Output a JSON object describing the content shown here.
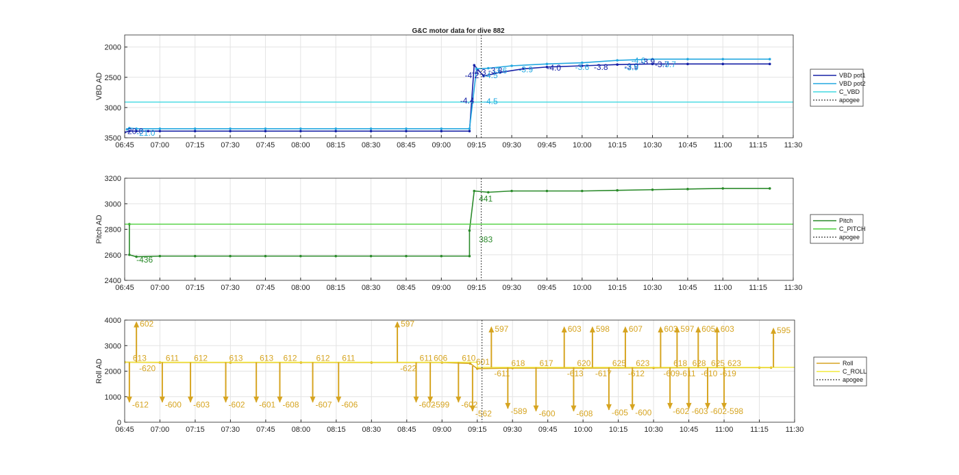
{
  "figure_title": "G&C motor data for dive 882",
  "colors": {
    "vbd1": "#1520a6",
    "vbd2": "#22a7e0",
    "c_vbd": "#3fd8e0",
    "apogee": "#555555",
    "pitch": "#2a8a2a",
    "c_pitch": "#4ccf3a",
    "roll": "#d6a420",
    "c_roll": "#f2ea3a",
    "grid": "#e3e3e3",
    "axis": "#262626"
  },
  "chart_data": [
    {
      "type": "line",
      "ylabel": "VBD AD",
      "ylim": [
        3500,
        1800
      ],
      "yticks": [
        2000,
        2500,
        3000,
        3500
      ],
      "ytick_labels": [
        "2000",
        "2500",
        "3000",
        "3500"
      ],
      "xlim": [
        "06:45",
        "11:30"
      ],
      "xtick_labels": [
        "06:45",
        "07:00",
        "07:15",
        "07:30",
        "07:45",
        "08:00",
        "08:15",
        "08:30",
        "08:45",
        "09:00",
        "09:15",
        "09:30",
        "09:45",
        "10:00",
        "10:15",
        "10:30",
        "10:45",
        "11:00",
        "11:15",
        "11:30"
      ],
      "apogee_x": "09:17",
      "series": [
        {
          "name": "VBD pot1",
          "color_key": "vbd1",
          "values": [
            [
              "06:45",
              3410
            ],
            [
              "06:47",
              3390
            ],
            [
              "06:50",
              3390
            ],
            [
              "06:55",
              3390
            ],
            [
              "07:00",
              3390
            ],
            [
              "07:15",
              3390
            ],
            [
              "07:30",
              3390
            ],
            [
              "07:45",
              3390
            ],
            [
              "08:00",
              3390
            ],
            [
              "08:15",
              3390
            ],
            [
              "08:30",
              3390
            ],
            [
              "08:45",
              3390
            ],
            [
              "09:00",
              3390
            ],
            [
              "09:12",
              3390
            ],
            [
              "09:14",
              2300
            ],
            [
              "09:18",
              2480
            ],
            [
              "09:25",
              2420
            ],
            [
              "09:35",
              2360
            ],
            [
              "09:45",
              2330
            ],
            [
              "10:00",
              2310
            ],
            [
              "10:15",
              2290
            ],
            [
              "10:30",
              2280
            ],
            [
              "10:45",
              2280
            ],
            [
              "11:00",
              2280
            ],
            [
              "11:20",
              2280
            ]
          ]
        },
        {
          "name": "VBD pot2",
          "color_key": "vbd2",
          "values": [
            [
              "06:46",
              3360
            ],
            [
              "06:47",
              3340
            ],
            [
              "06:50",
              3350
            ],
            [
              "07:00",
              3350
            ],
            [
              "07:15",
              3350
            ],
            [
              "07:30",
              3350
            ],
            [
              "07:45",
              3350
            ],
            [
              "08:00",
              3350
            ],
            [
              "08:15",
              3350
            ],
            [
              "08:30",
              3350
            ],
            [
              "08:45",
              3350
            ],
            [
              "09:00",
              3350
            ],
            [
              "09:12",
              3350
            ],
            [
              "09:15",
              2360
            ],
            [
              "09:20",
              2350
            ],
            [
              "09:30",
              2310
            ],
            [
              "09:45",
              2280
            ],
            [
              "10:00",
              2260
            ],
            [
              "10:15",
              2220
            ],
            [
              "10:30",
              2200
            ],
            [
              "10:45",
              2200
            ],
            [
              "11:00",
              2200
            ],
            [
              "11:20",
              2200
            ]
          ]
        },
        {
          "name": "C_VBD",
          "color_key": "c_vbd",
          "values": [
            [
              "06:45",
              2910
            ],
            [
              "11:30",
              2910
            ]
          ]
        }
      ],
      "annotations": [
        {
          "text": "-20.0",
          "x": "06:45",
          "y": 3390,
          "color_key": "vbd1"
        },
        {
          "text": "-21.0",
          "x": "06:50",
          "y": 3420,
          "color_key": "vbd2"
        },
        {
          "text": "-4.4",
          "x": "09:08",
          "y": 2890,
          "color_key": "vbd1"
        },
        {
          "text": "-4.5",
          "x": "09:18",
          "y": 2900,
          "color_key": "vbd2"
        },
        {
          "text": "-4.2",
          "x": "09:10",
          "y": 2470,
          "color_key": "vbd1"
        },
        {
          "text": "-4.3",
          "x": "09:13",
          "y": 2420,
          "color_key": "vbd1"
        },
        {
          "text": "-4.5",
          "x": "09:18",
          "y": 2470,
          "color_key": "vbd2"
        },
        {
          "text": "-3.8",
          "x": "09:20",
          "y": 2390,
          "color_key": "vbd1"
        },
        {
          "text": "-3.6",
          "x": "09:22",
          "y": 2390,
          "color_key": "vbd2"
        },
        {
          "text": "-3.9",
          "x": "09:33",
          "y": 2370,
          "color_key": "vbd2"
        },
        {
          "text": "-4.0",
          "x": "09:45",
          "y": 2345,
          "color_key": "vbd1"
        },
        {
          "text": "-3.6",
          "x": "09:57",
          "y": 2330,
          "color_key": "vbd2"
        },
        {
          "text": "-3.8",
          "x": "10:05",
          "y": 2330,
          "color_key": "vbd1"
        },
        {
          "text": "-3.9",
          "x": "10:18",
          "y": 2320,
          "color_key": "vbd1"
        },
        {
          "text": "-3.9",
          "x": "10:18",
          "y": 2340,
          "color_key": "vbd2"
        },
        {
          "text": "-4.0",
          "x": "10:21",
          "y": 2225,
          "color_key": "vbd2"
        },
        {
          "text": "-3.9",
          "x": "10:25",
          "y": 2240,
          "color_key": "vbd1"
        },
        {
          "text": "-3.7",
          "x": "10:31",
          "y": 2285,
          "color_key": "vbd1"
        },
        {
          "text": "-3.7",
          "x": "10:34",
          "y": 2285,
          "color_key": "vbd2"
        }
      ],
      "legend": {
        "placement": "right",
        "entries": [
          "VBD pot1",
          "VBD pot2",
          "C_VBD",
          "apogee"
        ]
      }
    },
    {
      "type": "line",
      "ylabel": "Pitch AD",
      "ylim": [
        2400,
        3200
      ],
      "yticks": [
        2400,
        2600,
        2800,
        3000,
        3200
      ],
      "ytick_labels": [
        "2400",
        "2600",
        "2800",
        "3000",
        "3200"
      ],
      "xlim": [
        "06:45",
        "11:30"
      ],
      "xtick_labels": [
        "06:45",
        "07:00",
        "07:15",
        "07:30",
        "07:45",
        "08:00",
        "08:15",
        "08:30",
        "08:45",
        "09:00",
        "09:15",
        "09:30",
        "09:45",
        "10:00",
        "10:15",
        "10:30",
        "10:45",
        "11:00",
        "11:15",
        "11:30"
      ],
      "apogee_x": "09:17",
      "series": [
        {
          "name": "Pitch",
          "color_key": "pitch",
          "values": [
            [
              "06:47",
              2840
            ],
            [
              "06:47",
              2600
            ],
            [
              "06:50",
              2585
            ],
            [
              "07:00",
              2590
            ],
            [
              "07:15",
              2590
            ],
            [
              "07:30",
              2590
            ],
            [
              "07:45",
              2590
            ],
            [
              "08:00",
              2590
            ],
            [
              "08:15",
              2590
            ],
            [
              "08:30",
              2590
            ],
            [
              "08:45",
              2590
            ],
            [
              "09:00",
              2590
            ],
            [
              "09:12",
              2590
            ],
            [
              "09:12",
              2790
            ],
            [
              "09:14",
              3100
            ],
            [
              "09:20",
              3090
            ],
            [
              "09:30",
              3100
            ],
            [
              "09:45",
              3100
            ],
            [
              "10:00",
              3100
            ],
            [
              "10:15",
              3105
            ],
            [
              "10:30",
              3110
            ],
            [
              "10:45",
              3115
            ],
            [
              "11:00",
              3120
            ],
            [
              "11:20",
              3120
            ]
          ]
        },
        {
          "name": "C_PITCH",
          "color_key": "c_pitch",
          "values": [
            [
              "06:45",
              2840
            ],
            [
              "11:30",
              2840
            ]
          ]
        }
      ],
      "annotations": [
        {
          "text": "-436",
          "x": "06:50",
          "y": 2560,
          "color_key": "pitch"
        },
        {
          "text": "383",
          "x": "09:16",
          "y": 2720,
          "color_key": "pitch"
        },
        {
          "text": "441",
          "x": "09:16",
          "y": 3040,
          "color_key": "pitch"
        }
      ],
      "legend": {
        "placement": "right",
        "entries": [
          "Pitch",
          "C_PITCH",
          "apogee"
        ]
      }
    },
    {
      "type": "line",
      "ylabel": "Roll AD",
      "ylim": [
        0,
        4000
      ],
      "yticks": [
        0,
        1000,
        2000,
        3000,
        4000
      ],
      "ytick_labels": [
        "0",
        "1000",
        "2000",
        "3000",
        "4000"
      ],
      "xlim": [
        "06:45",
        "11:30"
      ],
      "xtick_labels": [
        "06:45",
        "07:00",
        "07:15",
        "07:30",
        "07:45",
        "08:00",
        "08:15",
        "08:30",
        "08:45",
        "09:00",
        "09:15",
        "09:30",
        "09:45",
        "10:00",
        "10:15",
        "10:30",
        "10:45",
        "11:00",
        "11:15",
        "11:30"
      ],
      "apogee_x": "09:17",
      "series": [
        {
          "name": "Roll",
          "color_key": "roll",
          "values": [
            [
              "06:45",
              2350
            ],
            [
              "07:00",
              2340
            ],
            [
              "07:30",
              2340
            ],
            [
              "08:00",
              2340
            ],
            [
              "08:30",
              2340
            ],
            [
              "09:00",
              2340
            ],
            [
              "09:12",
              2300
            ],
            [
              "09:15",
              2100
            ],
            [
              "09:30",
              2120
            ],
            [
              "10:00",
              2120
            ],
            [
              "10:30",
              2130
            ],
            [
              "11:00",
              2140
            ],
            [
              "11:15",
              2140
            ],
            [
              "11:20",
              2140
            ]
          ]
        },
        {
          "name": "C_ROLL",
          "color_key": "c_roll",
          "values": [
            [
              "06:45",
              2350
            ],
            [
              "09:15",
              2350
            ],
            [
              "09:15",
              2150
            ],
            [
              "11:30",
              2150
            ]
          ]
        }
      ],
      "pulses": [
        {
          "x": "06:47",
          "base": 2350,
          "low": 950,
          "high": null,
          "up_label": "613",
          "down_label": "-612"
        },
        {
          "x": "06:50",
          "base": 2350,
          "low": null,
          "high": 3850,
          "up_label": "602",
          "down_label": "-620"
        },
        {
          "x": "07:01",
          "base": 2350,
          "low": 950,
          "high": null,
          "up_label": "611",
          "down_label": "-600"
        },
        {
          "x": "07:13",
          "base": 2350,
          "low": 950,
          "high": null,
          "up_label": "612",
          "down_label": "-603"
        },
        {
          "x": "07:28",
          "base": 2350,
          "low": 950,
          "high": null,
          "up_label": "613",
          "down_label": "-602"
        },
        {
          "x": "07:41",
          "base": 2350,
          "low": 950,
          "high": null,
          "up_label": "613",
          "down_label": "-601"
        },
        {
          "x": "07:51",
          "base": 2350,
          "low": 950,
          "high": null,
          "up_label": "612",
          "down_label": "-608"
        },
        {
          "x": "08:05",
          "base": 2350,
          "low": 950,
          "high": null,
          "up_label": "612",
          "down_label": "-607"
        },
        {
          "x": "08:16",
          "base": 2350,
          "low": 950,
          "high": null,
          "up_label": "611",
          "down_label": "-606"
        },
        {
          "x": "08:41",
          "base": 2350,
          "low": null,
          "high": 3850,
          "up_label": "597",
          "down_label": "-622"
        },
        {
          "x": "08:49",
          "base": 2350,
          "low": 950,
          "high": null,
          "up_label": "611",
          "down_label": "-602"
        },
        {
          "x": "08:55",
          "base": 2350,
          "low": 950,
          "high": null,
          "up_label": "606",
          "down_label": "-599"
        },
        {
          "x": "09:07",
          "base": 2350,
          "low": 950,
          "high": null,
          "up_label": "610",
          "down_label": "-602"
        },
        {
          "x": "09:13",
          "base": 2200,
          "low": 600,
          "high": null,
          "up_label": "601",
          "down_label": "-562"
        },
        {
          "x": "09:21",
          "base": 2150,
          "low": null,
          "high": 3650,
          "up_label": "597",
          "down_label": "-611"
        },
        {
          "x": "09:28",
          "base": 2150,
          "low": 700,
          "high": null,
          "up_label": "618",
          "down_label": "-589"
        },
        {
          "x": "09:40",
          "base": 2150,
          "low": 600,
          "high": null,
          "up_label": "617",
          "down_label": "-600"
        },
        {
          "x": "09:52",
          "base": 2150,
          "low": null,
          "high": 3650,
          "up_label": "603",
          "down_label": "-613"
        },
        {
          "x": "09:56",
          "base": 2150,
          "low": 600,
          "high": null,
          "up_label": "620",
          "down_label": "-608"
        },
        {
          "x": "10:04",
          "base": 2150,
          "low": null,
          "high": 3650,
          "up_label": "598",
          "down_label": "-617"
        },
        {
          "x": "10:11",
          "base": 2150,
          "low": 650,
          "high": null,
          "up_label": "625",
          "down_label": "-605"
        },
        {
          "x": "10:18",
          "base": 2150,
          "low": null,
          "high": 3650,
          "up_label": "607",
          "down_label": "-612"
        },
        {
          "x": "10:21",
          "base": 2150,
          "low": 650,
          "high": null,
          "up_label": "623",
          "down_label": "-600"
        },
        {
          "x": "10:33",
          "base": 2150,
          "low": null,
          "high": 3650,
          "up_label": "603",
          "down_label": "-609"
        },
        {
          "x": "10:37",
          "base": 2150,
          "low": 700,
          "high": null,
          "up_label": "618",
          "down_label": "-602"
        },
        {
          "x": "10:40",
          "base": 2150,
          "low": null,
          "high": 3650,
          "up_label": "597",
          "down_label": "-611"
        },
        {
          "x": "10:45",
          "base": 2150,
          "low": 700,
          "high": null,
          "up_label": "628",
          "down_label": "-603"
        },
        {
          "x": "10:49",
          "base": 2150,
          "low": null,
          "high": 3650,
          "up_label": "605",
          "down_label": "-610"
        },
        {
          "x": "10:53",
          "base": 2150,
          "low": 700,
          "high": null,
          "up_label": "625",
          "down_label": "-602"
        },
        {
          "x": "10:57",
          "base": 2150,
          "low": null,
          "high": 3650,
          "up_label": "603",
          "down_label": "-619"
        },
        {
          "x": "11:00",
          "base": 2150,
          "low": 700,
          "high": null,
          "up_label": "623",
          "down_label": "-598"
        },
        {
          "x": "11:21",
          "base": 2150,
          "low": null,
          "high": 3600,
          "up_label": "595",
          "down_label": null
        }
      ],
      "legend": {
        "placement": "right",
        "entries": [
          "Roll",
          "C_ROLL",
          "apogee"
        ]
      }
    }
  ]
}
